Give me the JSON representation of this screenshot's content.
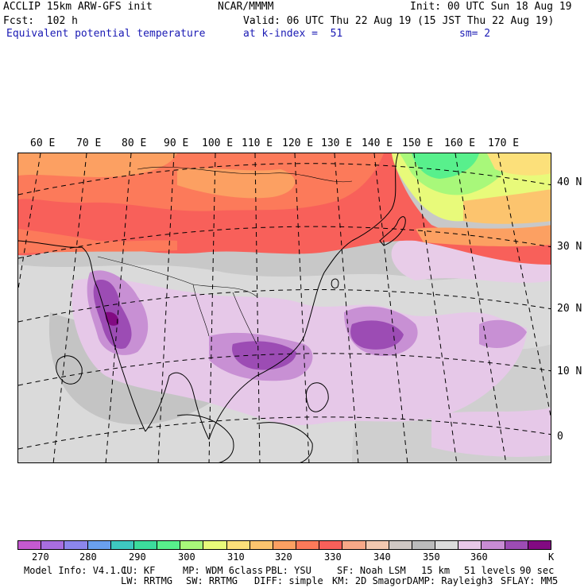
{
  "header": {
    "line1_left": "ACCLIP 15km ARW-GFS init",
    "line1_center": "NCAR/MMMM",
    "line1_right": "Init: 00 UTC Sun 18 Aug 19",
    "line2_left": "Fcst:  102 h",
    "line2_right": "Valid: 06 UTC Thu 22 Aug 19 (15 JST Thu 22 Aug 19)",
    "line3_left": "Equivalent potential temperature",
    "line3_mid": "at k-index =  51",
    "line3_right": "sm= 2"
  },
  "axes": {
    "lon_labels": [
      "60 E",
      "70 E",
      "80 E",
      "90 E",
      "100 E",
      "110 E",
      "120 E",
      "130 E",
      "140 E",
      "150 E",
      "160 E",
      "170 E"
    ],
    "lat_labels": [
      "40 N",
      "30 N",
      "20 N",
      "10 N",
      "0"
    ]
  },
  "colorbar": {
    "colors": [
      "#c45ad0",
      "#a86ee0",
      "#8c86ec",
      "#6aa0ee",
      "#3ec8c0",
      "#3cdc9c",
      "#58f08c",
      "#a8f87a",
      "#e8fa7a",
      "#fce07a",
      "#fcc46e",
      "#fca062",
      "#fc7a5a",
      "#f8605a",
      "#f8a888",
      "#f2c8b0",
      "#d0c8c4",
      "#bcbcbc",
      "#dcdcdc",
      "#e8c8e8",
      "#c88cd4",
      "#9c4cb4",
      "#820a82"
    ],
    "labels": [
      "270",
      "280",
      "290",
      "300",
      "310",
      "320",
      "330",
      "340",
      "350",
      "360"
    ],
    "unit": "K"
  },
  "footer": {
    "line1": [
      "Model Info: V4.1.1",
      "CU: KF",
      "MP: WDM 6class",
      "PBL: YSU",
      "SF: Noah LSM",
      "15 km",
      "51 levels",
      "90 sec"
    ],
    "line2": [
      "LW: RRTMG",
      "SW: RRTMG",
      "DIFF: simple",
      "KM: 2D Smagor",
      "DAMP: Rayleigh3",
      "SFLAY: MM5"
    ]
  }
}
